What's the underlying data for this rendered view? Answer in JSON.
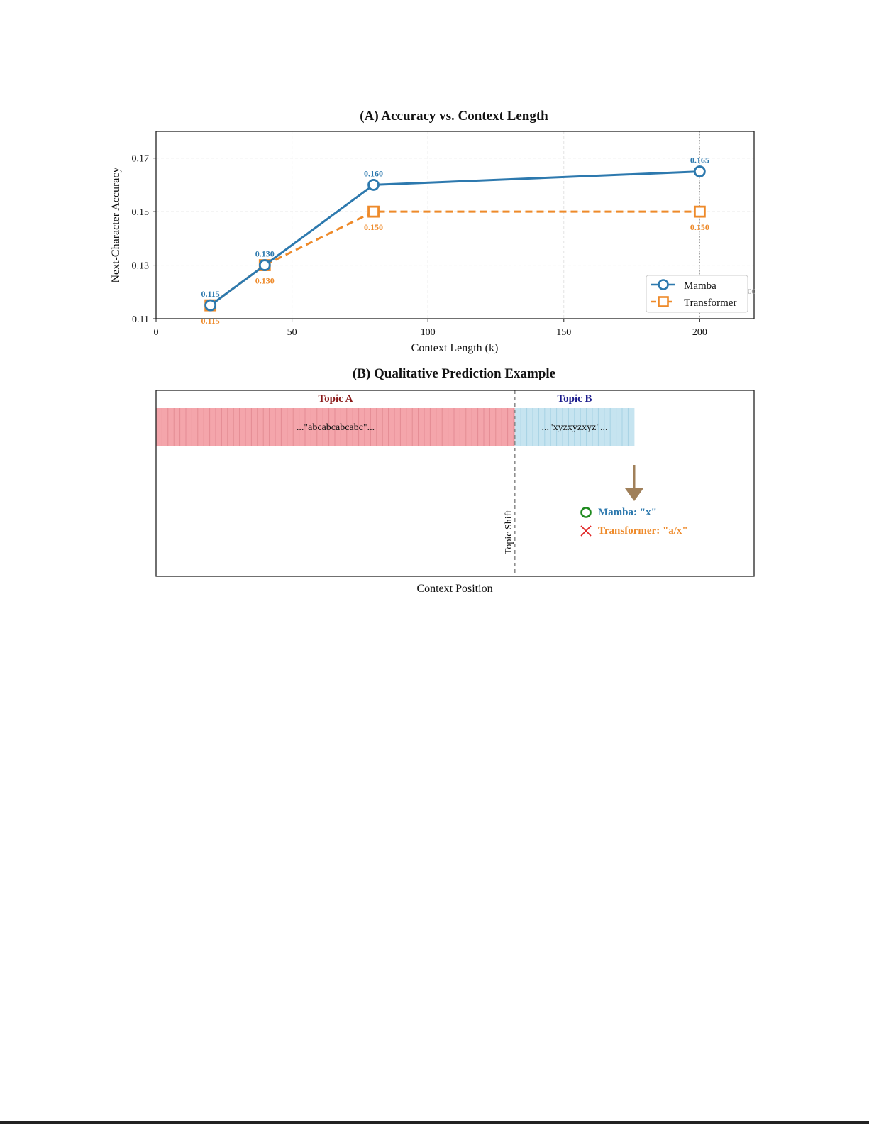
{
  "chart_data": [
    {
      "type": "line",
      "title": "(A) Accuracy vs. Context Length",
      "xlabel": "Context Length (k)",
      "ylabel": "Next-Character Accuracy",
      "xlim": [
        0,
        220
      ],
      "ylim": [
        0.11,
        0.18
      ],
      "xticks": [
        0,
        50,
        100,
        150,
        200
      ],
      "xtick_labels": [
        "0",
        "50",
        "100",
        "150",
        "200"
      ],
      "yticks": [
        0.11,
        0.13,
        0.15,
        0.17
      ],
      "ytick_labels": [
        "0.11",
        "0.13",
        "0.15",
        "0.17"
      ],
      "grid": true,
      "legend_position": "lower-right",
      "stray_label": "00",
      "series": [
        {
          "name": "Mamba",
          "color": "#2d79ae",
          "marker": "circle",
          "line_style": "solid",
          "label_side": "above",
          "x": [
            20,
            40,
            80,
            200
          ],
          "y": [
            0.115,
            0.13,
            0.16,
            0.165
          ],
          "labels": [
            "0.115",
            "0.130",
            "0.160",
            "0.165"
          ]
        },
        {
          "name": "Transformer",
          "color": "#ee8a2a",
          "marker": "square",
          "line_style": "dashed",
          "label_side": "below",
          "x": [
            20,
            40,
            80,
            200
          ],
          "y": [
            0.115,
            0.13,
            0.15,
            0.15
          ],
          "labels": [
            "0.115",
            "0.130",
            "0.150",
            "0.150"
          ]
        }
      ]
    },
    {
      "type": "diagram",
      "title": "(B) Qualitative Prediction Example",
      "xlabel": "Context Position",
      "shift_label": "Topic Shift",
      "topics": [
        {
          "name": "Topic A",
          "text": "...\"abcabcabcabc\"...",
          "color": "#f4a5ab",
          "label_color": "#8b1a1a",
          "span": [
            0,
            0.6
          ]
        },
        {
          "name": "Topic B",
          "text": "...\"xyzxyzxyz\"...",
          "color": "#c6e4f0",
          "label_color": "#1a1a8b",
          "span": [
            0.6,
            0.8
          ]
        }
      ],
      "shift_at": 0.6,
      "arrow_color": "#a0805a",
      "predictions": [
        {
          "symbol": "circle",
          "symbol_color": "#1e8a1e",
          "text": "Mamba: \"x\"",
          "color": "#2d79ae"
        },
        {
          "symbol": "cross",
          "symbol_color": "#e02424",
          "text": "Transformer: \"a/x\"",
          "color": "#ee8a2a"
        }
      ]
    }
  ]
}
